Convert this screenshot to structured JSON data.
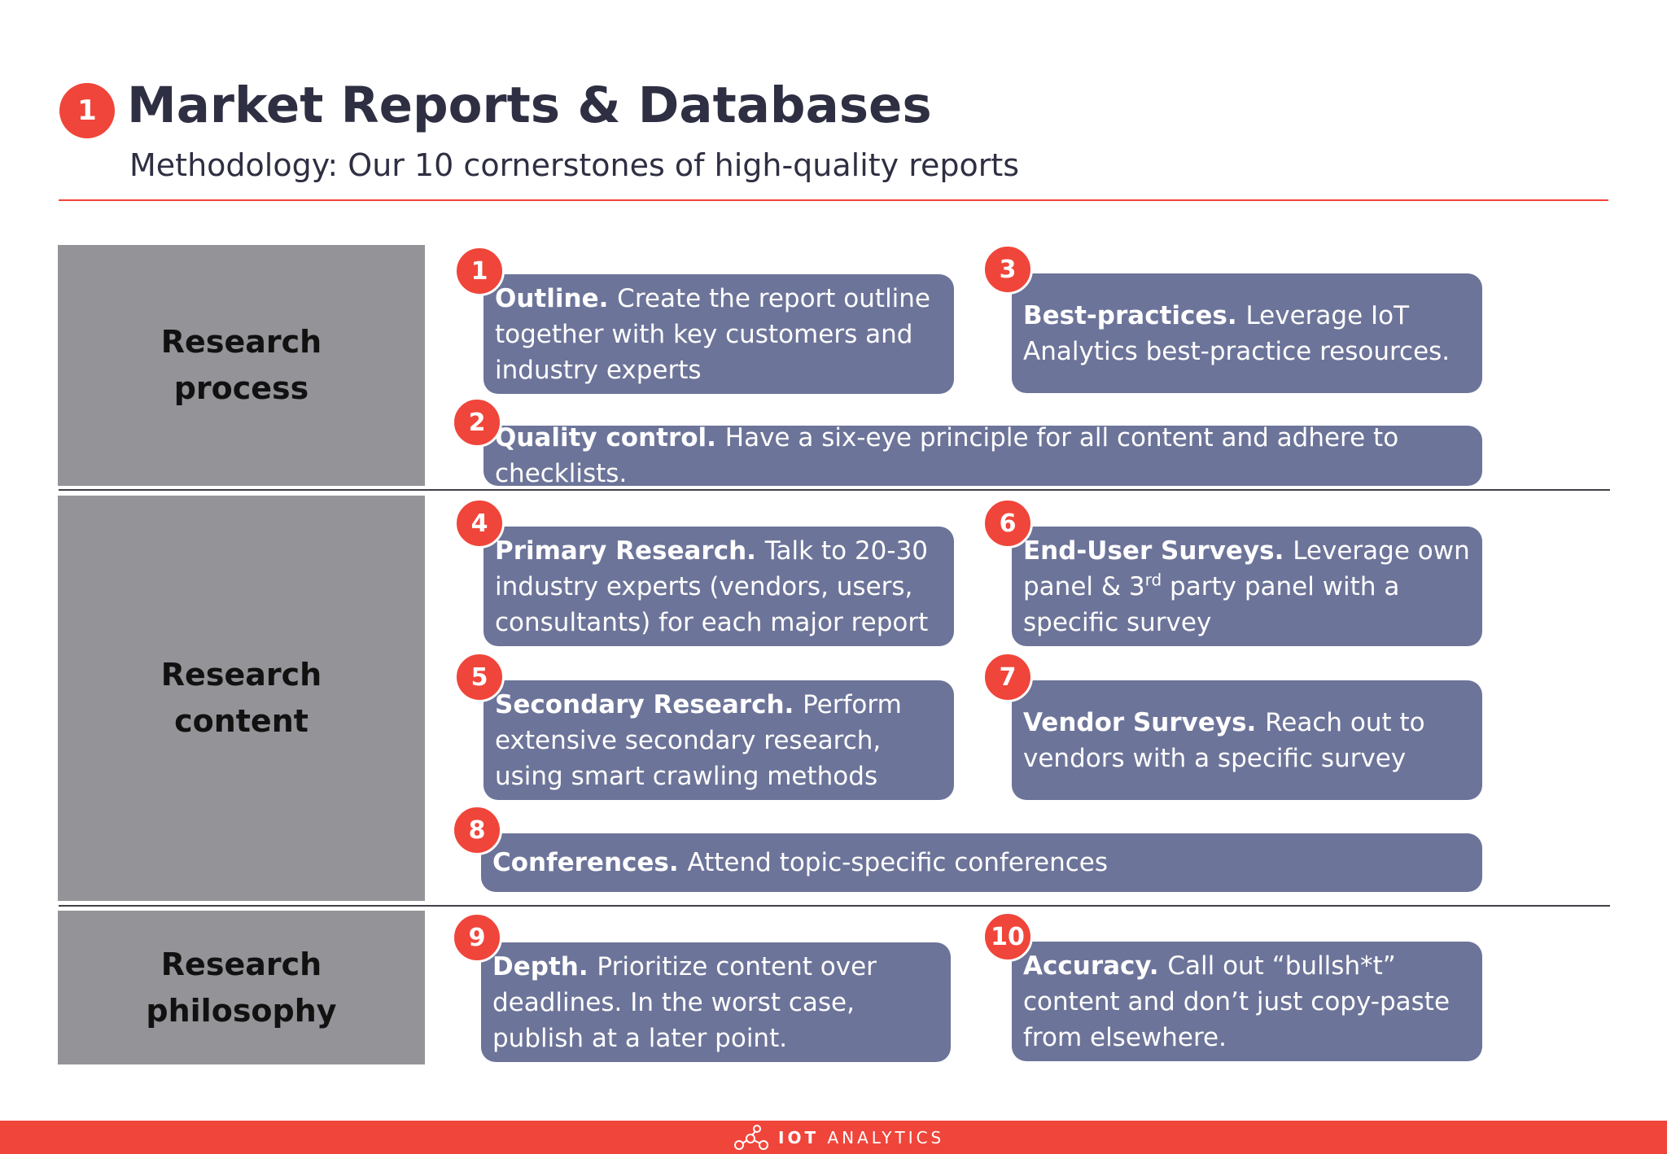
{
  "header": {
    "badge": "1",
    "title": "Market Reports & Databases",
    "subtitle": "Methodology: Our 10 cornerstones of high-quality reports"
  },
  "sections": [
    {
      "label_line1": "Research",
      "label_line2": "process"
    },
    {
      "label_line1": "Research",
      "label_line2": "content"
    },
    {
      "label_line1": "Research",
      "label_line2": "philosophy"
    }
  ],
  "cards": [
    {
      "number": "1",
      "title": "Outline.",
      "text": "Create the report outline together with key customers and industry experts"
    },
    {
      "number": "3",
      "title": "Best-practices.",
      "text": "Leverage IoT Analytics best-practice resources."
    },
    {
      "number": "2",
      "title": "Quality control.",
      "text": "Have a six-eye principle for all content and adhere to checklists."
    },
    {
      "number": "4",
      "title": "Primary Research.",
      "text": "Talk to 20-30 industry experts (vendors, users, consultants) for each major report"
    },
    {
      "number": "6",
      "title": "End-User Surveys.",
      "text_before": "Leverage own panel & 3",
      "superscript": "rd",
      "text_after": " party panel with a specific survey"
    },
    {
      "number": "5",
      "title": "Secondary Research.",
      "text": "Perform extensive secondary research, using smart crawling methods"
    },
    {
      "number": "7",
      "title": "Vendor Surveys.",
      "text": "Reach out to vendors with a specific survey"
    },
    {
      "number": "8",
      "title": "Conferences.",
      "text": "Attend topic-specific conferences"
    },
    {
      "number": "9",
      "title": "Depth.",
      "text": "Prioritize content over deadlines. In the worst case, publish at a later point."
    },
    {
      "number": "10",
      "title": "Accuracy.",
      "text": "Call out “bullsh*t” content and don’t just copy-paste from elsewhere."
    }
  ],
  "footer": {
    "brand_prefix": "IOT",
    "brand_suffix": "ANALYTICS"
  },
  "colors": {
    "accent": "#f0453a",
    "card": "#6d7499",
    "band": "#939398",
    "title": "#2e2f42"
  }
}
